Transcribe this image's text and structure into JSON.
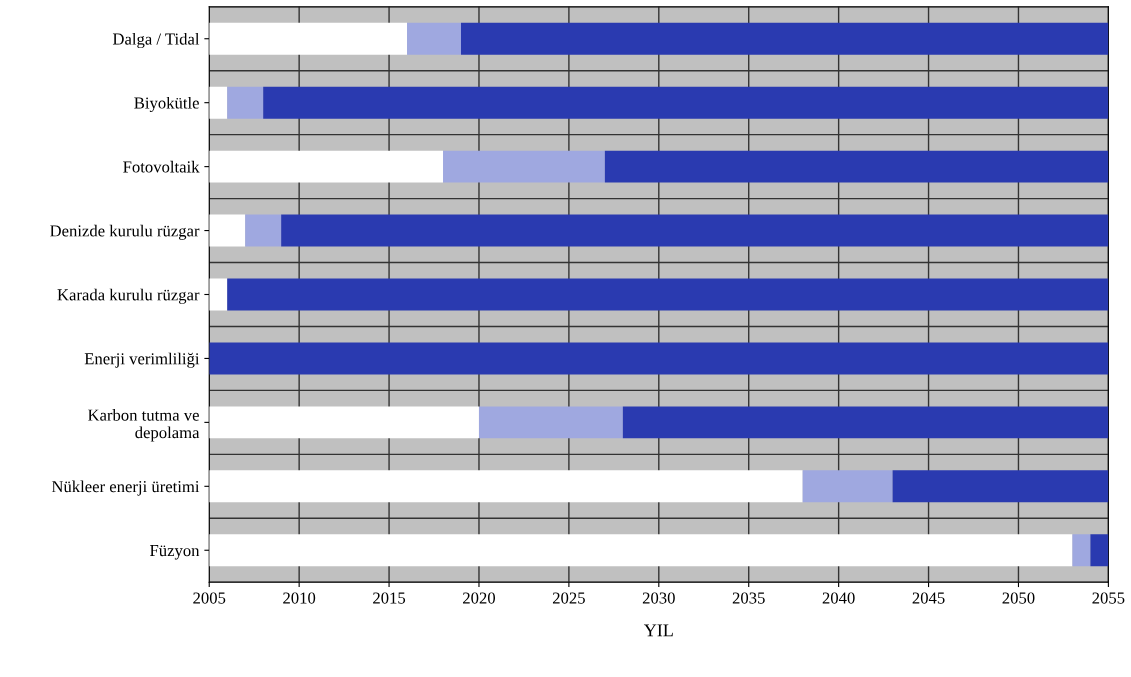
{
  "chart_data": {
    "type": "bar",
    "orientation": "horizontal",
    "xlabel": "YIL",
    "categories": [
      "Dalga / Tidal",
      "Biyokütle",
      "Fotovoltaik",
      "Denizde kurulu rüzgar",
      "Karada kurulu rüzgar",
      "Enerji verimliliği",
      "Karbon tutma ve\ndepolama",
      "Nükleer enerji üretimi",
      "Füzyon"
    ],
    "series": [
      {
        "color": "#ffffff",
        "base": [
          2005,
          2005,
          2005,
          2005,
          2005,
          null,
          2005,
          2005,
          2005
        ],
        "values": [
          11,
          1,
          13,
          2,
          1,
          null,
          15,
          33,
          48
        ]
      },
      {
        "color": "#9fa8e0",
        "base": [
          2016,
          2006,
          2018,
          2007,
          null,
          null,
          2020,
          2038,
          2053
        ],
        "values": [
          3,
          2,
          9,
          2,
          null,
          null,
          8,
          5,
          1
        ]
      },
      {
        "color": "#2a3ab0",
        "base": [
          2019,
          2008,
          2027,
          2009,
          2006,
          2005,
          2028,
          2043,
          2054
        ],
        "values": [
          36,
          47,
          28,
          46,
          49,
          50,
          27,
          12,
          1
        ]
      }
    ],
    "xlim": [
      2005,
      2055
    ],
    "xticks": [
      2005,
      2010,
      2015,
      2020,
      2025,
      2030,
      2035,
      2040,
      2045,
      2050,
      2055
    ],
    "grid": true
  }
}
